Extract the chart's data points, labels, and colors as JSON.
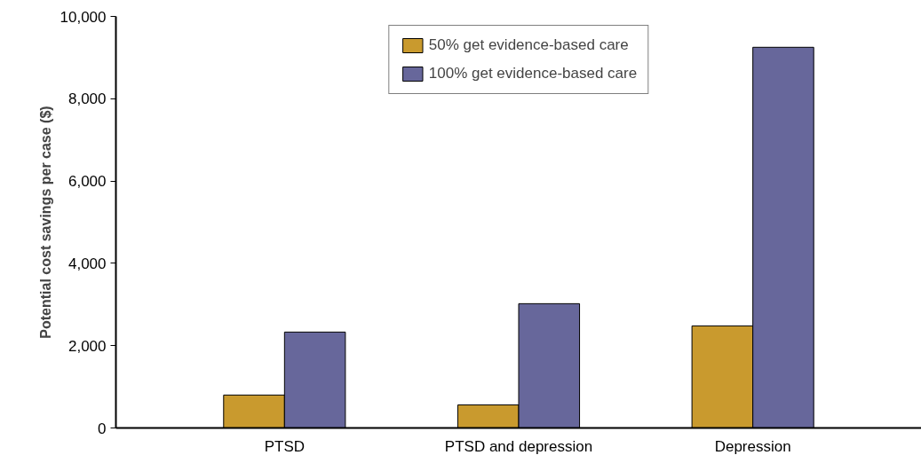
{
  "chart_data": {
    "type": "bar",
    "ylabel": "Potential cost savings per case ($)",
    "categories": [
      "PTSD",
      "PTSD and depression",
      "Depression"
    ],
    "series": [
      {
        "name": "50% get evidence-based care",
        "color": "#c99a2e",
        "values": [
          800,
          560,
          2480
        ]
      },
      {
        "name": "100% get evidence-based care",
        "color": "#67679b",
        "values": [
          2330,
          3020,
          9250
        ]
      }
    ],
    "ylim": [
      0,
      10000
    ],
    "yticks": [
      {
        "value": 0,
        "label": "0"
      },
      {
        "value": 2000,
        "label": "2,000"
      },
      {
        "value": 4000,
        "label": "4,000"
      },
      {
        "value": 6000,
        "label": "6,000"
      },
      {
        "value": 8000,
        "label": "8,000"
      },
      {
        "value": 10000,
        "label": "10,000"
      }
    ],
    "grid": false,
    "legend": "top"
  }
}
